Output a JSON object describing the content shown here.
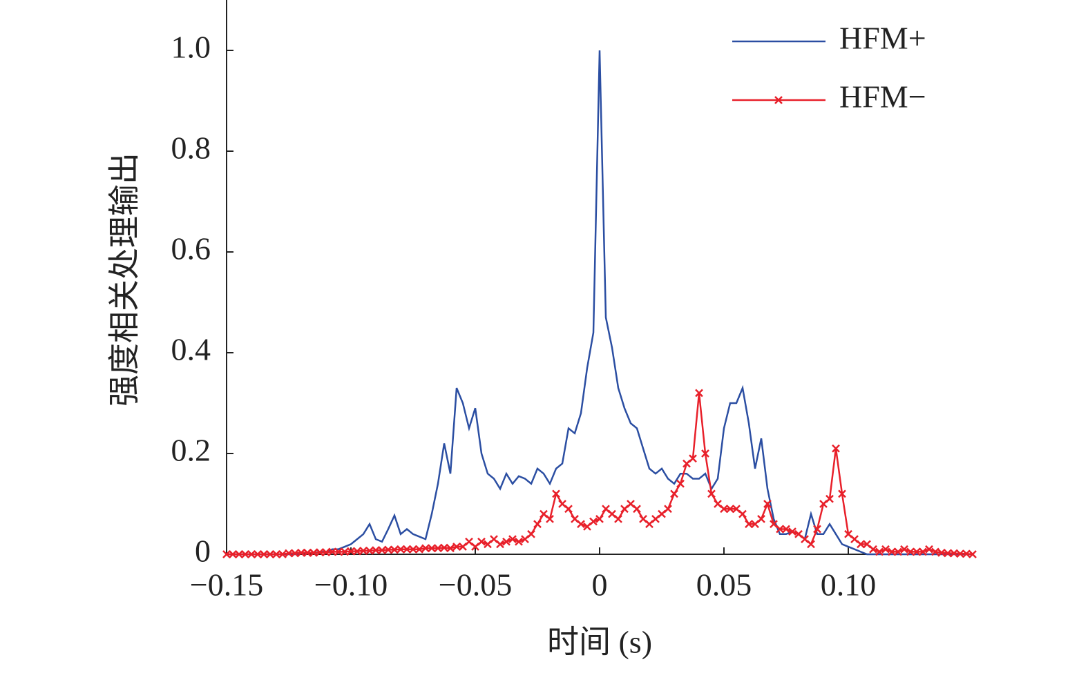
{
  "chart_data": {
    "type": "line",
    "x_label": "时间 (s)",
    "y_label": "强度相关处理输出",
    "x": [
      -0.15,
      -0.1475,
      -0.145,
      -0.1425,
      -0.14,
      -0.1375,
      -0.135,
      -0.1325,
      -0.13,
      -0.1275,
      -0.125,
      -0.1225,
      -0.12,
      -0.1175,
      -0.115,
      -0.1125,
      -0.11,
      -0.1075,
      -0.105,
      -0.1025,
      -0.1,
      -0.0975,
      -0.095,
      -0.0925,
      -0.09,
      -0.0875,
      -0.085,
      -0.0825,
      -0.08,
      -0.0775,
      -0.075,
      -0.0725,
      -0.07,
      -0.0675,
      -0.065,
      -0.0625,
      -0.06,
      -0.0575,
      -0.055,
      -0.0525,
      -0.05,
      -0.0475,
      -0.045,
      -0.0425,
      -0.04,
      -0.0375,
      -0.035,
      -0.0325,
      -0.03,
      -0.0275,
      -0.025,
      -0.0225,
      -0.02,
      -0.0175,
      -0.015,
      -0.0125,
      -0.01,
      -0.0075,
      -0.005,
      -0.0025,
      0,
      0.0025,
      0.005,
      0.0075,
      0.01,
      0.0125,
      0.015,
      0.0175,
      0.02,
      0.0225,
      0.025,
      0.0275,
      0.03,
      0.0325,
      0.035,
      0.0375,
      0.04,
      0.0425,
      0.045,
      0.0475,
      0.05,
      0.0525,
      0.055,
      0.0575,
      0.06,
      0.0625,
      0.065,
      0.0675,
      0.07,
      0.0725,
      0.075,
      0.0775,
      0.08,
      0.0825,
      0.085,
      0.0875,
      0.09,
      0.0925,
      0.095,
      0.0975,
      0.1,
      0.1025,
      0.105,
      0.1075,
      0.11,
      0.1125,
      0.115,
      0.1175,
      0.12,
      0.1225,
      0.125,
      0.1275,
      0.13,
      0.1325,
      0.135,
      0.1375,
      0.14,
      0.1425,
      0.145,
      0.1475,
      0.15
    ],
    "series": [
      {
        "name": "HFM+",
        "color": "#2b4ea2",
        "marker": "none",
        "values": [
          0,
          0,
          0,
          0,
          0,
          0,
          0,
          0,
          0,
          0,
          0,
          0,
          0.002,
          0.003,
          0.003,
          0.005,
          0.005,
          0.01,
          0.01,
          0.015,
          0.02,
          0.03,
          0.04,
          0.06,
          0.03,
          0.025,
          0.05,
          0.077,
          0.04,
          0.05,
          0.04,
          0.035,
          0.03,
          0.08,
          0.14,
          0.22,
          0.16,
          0.33,
          0.3,
          0.25,
          0.29,
          0.2,
          0.16,
          0.15,
          0.13,
          0.16,
          0.14,
          0.155,
          0.15,
          0.14,
          0.17,
          0.16,
          0.14,
          0.17,
          0.18,
          0.25,
          0.24,
          0.28,
          0.37,
          0.44,
          1.0,
          0.47,
          0.41,
          0.33,
          0.29,
          0.26,
          0.25,
          0.21,
          0.17,
          0.16,
          0.17,
          0.15,
          0.14,
          0.16,
          0.16,
          0.15,
          0.15,
          0.16,
          0.13,
          0.15,
          0.25,
          0.3,
          0.3,
          0.33,
          0.26,
          0.17,
          0.23,
          0.13,
          0.07,
          0.04,
          0.04,
          0.045,
          0.04,
          0.03,
          0.08,
          0.04,
          0.04,
          0.06,
          0.04,
          0.02,
          0.015,
          0.01,
          0.005,
          0,
          0,
          0,
          0,
          0,
          0,
          0,
          0,
          0,
          0,
          0,
          0,
          0,
          0,
          0,
          0,
          0,
          0
        ]
      },
      {
        "name": "HFM−",
        "color": "#e8202a",
        "marker": "x",
        "values": [
          0,
          0,
          0,
          0,
          0,
          0,
          0,
          0,
          0,
          0,
          0.002,
          0.002,
          0.003,
          0.003,
          0.003,
          0.004,
          0.004,
          0.005,
          0.005,
          0.005,
          0.006,
          0.006,
          0.007,
          0.007,
          0.008,
          0.008,
          0.009,
          0.009,
          0.01,
          0.01,
          0.01,
          0.01,
          0.012,
          0.012,
          0.012,
          0.013,
          0.012,
          0.015,
          0.015,
          0.025,
          0.015,
          0.025,
          0.02,
          0.03,
          0.02,
          0.025,
          0.03,
          0.025,
          0.03,
          0.04,
          0.06,
          0.08,
          0.07,
          0.12,
          0.1,
          0.09,
          0.07,
          0.06,
          0.055,
          0.065,
          0.07,
          0.09,
          0.08,
          0.07,
          0.09,
          0.1,
          0.09,
          0.07,
          0.06,
          0.07,
          0.08,
          0.09,
          0.12,
          0.14,
          0.18,
          0.19,
          0.32,
          0.2,
          0.12,
          0.1,
          0.09,
          0.09,
          0.09,
          0.08,
          0.06,
          0.06,
          0.07,
          0.1,
          0.06,
          0.05,
          0.05,
          0.045,
          0.04,
          0.03,
          0.02,
          0.05,
          0.1,
          0.11,
          0.21,
          0.12,
          0.04,
          0.03,
          0.02,
          0.02,
          0.01,
          0.005,
          0.01,
          0.005,
          0.005,
          0.01,
          0.005,
          0.005,
          0.005,
          0.01,
          0.005,
          0.003,
          0.002,
          0.002,
          0.001,
          0.001,
          0
        ]
      }
    ],
    "xlim": [
      -0.15,
      0.15
    ],
    "ylim": [
      0,
      1.1
    ],
    "xticks": [
      {
        "value": -0.15,
        "label": "−0.15"
      },
      {
        "value": -0.1,
        "label": "−0.10"
      },
      {
        "value": -0.05,
        "label": "−0.05"
      },
      0,
      0.05,
      {
        "value": 0.1,
        "label": "0.10"
      }
    ],
    "yticks": [
      0,
      0.2,
      0.4,
      0.6,
      0.8,
      {
        "value": 1,
        "label": "1.0"
      }
    ],
    "legend": "upper right",
    "grid": false
  }
}
